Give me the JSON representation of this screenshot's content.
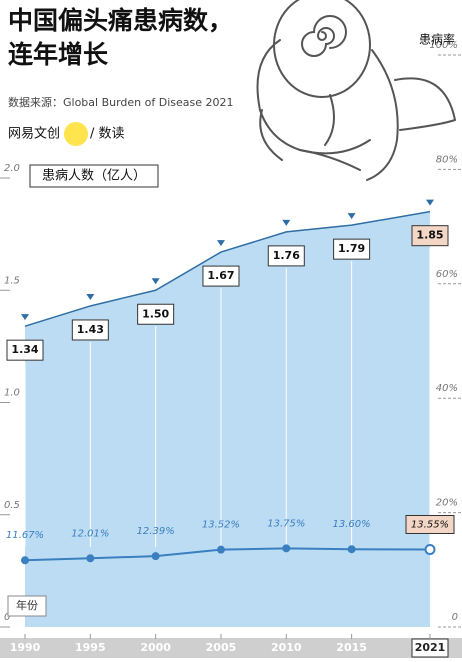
{
  "chart_data": {
    "type": "area",
    "title": [
      "中国偏头痛患病数，",
      "连年增长"
    ],
    "source": "数据来源：Global Burden of Disease 2021",
    "brand": "网易文创",
    "brand_sub": "/ 数读",
    "x_label": "年份",
    "y_label": "患病人数（亿人）",
    "y2_label": "患病率",
    "x": [
      1990,
      1995,
      2000,
      2005,
      2010,
      2015,
      2021
    ],
    "xlim": [
      1990,
      2021
    ],
    "ylim": [
      0,
      2
    ],
    "yticks": [
      0,
      0.5,
      {
        "value": 1,
        "label": "1.0"
      },
      1.5,
      {
        "value": 2,
        "label": "2.0"
      }
    ],
    "y2lim": [
      0,
      100
    ],
    "y2ticks": [
      0,
      {
        "value": 20,
        "label": "20%"
      },
      {
        "value": 40,
        "label": "40%"
      },
      {
        "value": 60,
        "label": "60%"
      },
      {
        "value": 80,
        "label": "80%"
      },
      {
        "value": 100,
        "label": "100%"
      }
    ],
    "highlight_last": true,
    "highlight_color": "#f3d6c6",
    "series": [
      {
        "type": "area",
        "color": "#bcdcf3",
        "line_color": "#2f6ea5",
        "values": [
          1.34,
          1.43,
          1.5,
          1.67,
          1.76,
          1.79,
          1.85
        ],
        "value_labels": [
          "1.34",
          "1.43",
          "1.50",
          "1.67",
          "1.76",
          "1.79",
          "1.85"
        ]
      },
      {
        "type": "line",
        "axis": "y2",
        "color": "#3a7fc0",
        "values": [
          11.67,
          12.01,
          12.39,
          13.52,
          13.75,
          13.6,
          13.55
        ],
        "value_labels": [
          "11.67%",
          "12.01%",
          "12.39%",
          "13.52%",
          "13.75%",
          "13.60%",
          "13.55%"
        ]
      }
    ]
  }
}
